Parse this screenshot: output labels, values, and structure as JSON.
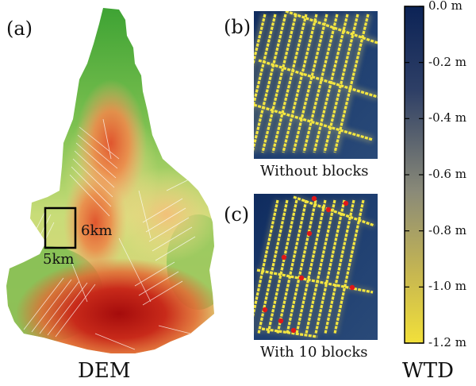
{
  "panels": {
    "a": {
      "letter": "(a)",
      "caption": "DEM",
      "box_height_label": "6km",
      "box_width_label": "5km"
    },
    "b": {
      "letter": "(b)",
      "caption": "Without blocks"
    },
    "c": {
      "letter": "(c)",
      "caption": "With 10 blocks",
      "block_count": 10
    }
  },
  "colorbar": {
    "title": "WTD",
    "ticks": [
      "0.0 m",
      "-0.2 m",
      "-0.4 m",
      "-0.6 m",
      "-0.8 m",
      "-1.0 m",
      "-1.2 m"
    ],
    "top_color": "#0c2356",
    "mid_color": "#8a8a78",
    "bottom_color": "#f2e03a"
  },
  "colors": {
    "dem_low": "#3aa132",
    "dem_mid": "#f2e28a",
    "dem_high": "#b01010",
    "canal": "#f4e640",
    "block": "#e01818",
    "water_deep": "#0f2b5e"
  }
}
